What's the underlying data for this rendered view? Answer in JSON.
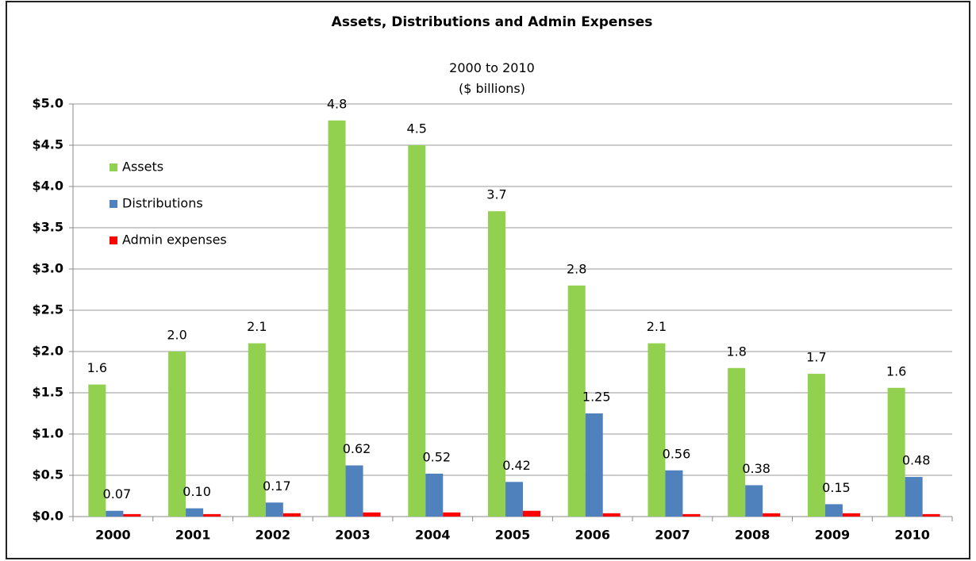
{
  "chart_data": {
    "type": "bar",
    "title": "Assets, Distributions and Admin Expenses",
    "subtitle": "2000 to 2010",
    "unit_note": "($ billions)",
    "categories": [
      "2000",
      "2001",
      "2002",
      "2003",
      "2004",
      "2005",
      "2006",
      "2007",
      "2008",
      "2009",
      "2010"
    ],
    "series": [
      {
        "name": "Assets",
        "color": "#92d050",
        "values": [
          1.6,
          2,
          2.1,
          4.8,
          4.5,
          3.7,
          2.8,
          2.1,
          1.8,
          1.73,
          1.56
        ],
        "value_labels": [
          "1.6",
          "2.0",
          "2.1",
          "4.8",
          "4.5",
          "3.7",
          "2.8",
          "2.1",
          "1.8",
          "1.7",
          "1.6"
        ]
      },
      {
        "name": "Distributions",
        "color": "#4f81bd",
        "values": [
          0.07,
          0.1,
          0.17,
          0.62,
          0.52,
          0.42,
          1.25,
          0.56,
          0.38,
          0.15,
          0.48
        ],
        "value_labels": [
          "0.07",
          "0.10",
          "0.17",
          "0.62",
          "0.52",
          "0.42",
          "1.25",
          "0.56",
          "0.38",
          "0.15",
          "0.48"
        ]
      },
      {
        "name": "Admin expenses",
        "color": "#ff0000",
        "values": [
          0.03,
          0.03,
          0.04,
          0.05,
          0.05,
          0.07,
          0.04,
          0.03,
          0.04,
          0.04,
          0.03
        ]
      }
    ],
    "ylim": [
      0,
      5
    ],
    "yticks": [
      {
        "value": 0,
        "label": "$0.0"
      },
      {
        "value": 0.5,
        "label": "$0.5"
      },
      {
        "value": 1,
        "label": "$1.0"
      },
      {
        "value": 1.5,
        "label": "$1.5"
      },
      {
        "value": 2,
        "label": "$2.0"
      },
      {
        "value": 2.5,
        "label": "$2.5"
      },
      {
        "value": 3,
        "label": "$3.0"
      },
      {
        "value": 3.5,
        "label": "$3.5"
      },
      {
        "value": 4,
        "label": "$4.0"
      },
      {
        "value": 4.5,
        "label": "$4.5"
      },
      {
        "value": 5,
        "label": "$5.0"
      }
    ],
    "grid": true,
    "legend": "upper left"
  }
}
